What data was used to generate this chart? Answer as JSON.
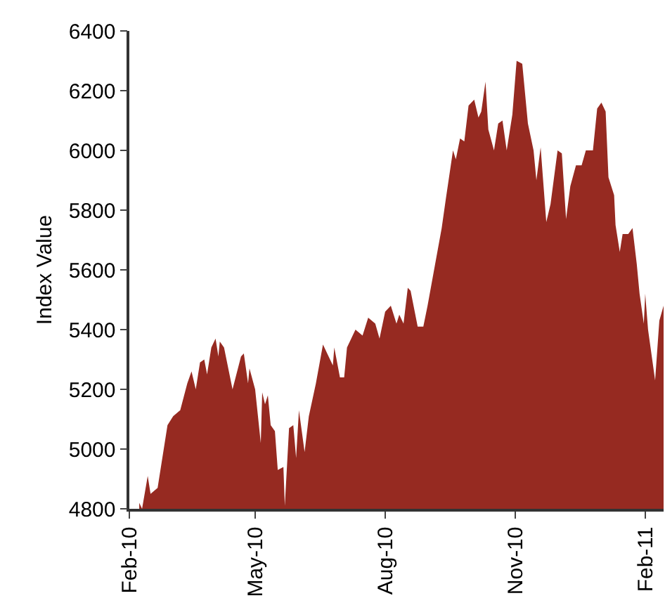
{
  "chart_data": {
    "type": "area",
    "ylabel": "Index Value",
    "color": "#962a21",
    "legend": false,
    "xlim": [
      "2010-02-01",
      "2011-02-14"
    ],
    "xticks": [
      {
        "value": "2010-02-01",
        "label": "Feb-10"
      },
      {
        "value": "2010-05-01",
        "label": "May-10"
      },
      {
        "value": "2010-08-01",
        "label": "Aug-10"
      },
      {
        "value": "2010-11-01",
        "label": "Nov-10"
      },
      {
        "value": "2011-02-01",
        "label": "Feb-11"
      }
    ],
    "ylim": [
      4800,
      6400
    ],
    "yticks": [
      4800,
      5000,
      5200,
      5400,
      5600,
      5800,
      6000,
      6200,
      6400
    ],
    "x": [
      "2010-02-08",
      "2010-02-10",
      "2010-02-14",
      "2010-02-16",
      "2010-02-21",
      "2010-02-28",
      "2010-03-04",
      "2010-03-09",
      "2010-03-14",
      "2010-03-17",
      "2010-03-20",
      "2010-03-23",
      "2010-03-26",
      "2010-03-28",
      "2010-03-31",
      "2010-04-03",
      "2010-04-05",
      "2010-04-06",
      "2010-04-09",
      "2010-04-15",
      "2010-04-21",
      "2010-04-23",
      "2010-04-26",
      "2010-04-27",
      "2010-05-01",
      "2010-05-05",
      "2010-05-06",
      "2010-05-08",
      "2010-05-10",
      "2010-05-12",
      "2010-05-15",
      "2010-05-17",
      "2010-05-21",
      "2010-05-22",
      "2010-05-25",
      "2010-05-28",
      "2010-05-30",
      "2010-06-01",
      "2010-06-05",
      "2010-06-08",
      "2010-06-13",
      "2010-06-18",
      "2010-06-21",
      "2010-06-25",
      "2010-06-26",
      "2010-06-30",
      "2010-07-03",
      "2010-07-05",
      "2010-07-08",
      "2010-07-11",
      "2010-07-16",
      "2010-07-20",
      "2010-07-25",
      "2010-07-28",
      "2010-08-01",
      "2010-08-05",
      "2010-08-09",
      "2010-08-11",
      "2010-08-14",
      "2010-08-17",
      "2010-08-19",
      "2010-08-24",
      "2010-08-28",
      "2010-08-31",
      "2010-09-05",
      "2010-09-10",
      "2010-09-13",
      "2010-09-18",
      "2010-09-20",
      "2010-09-23",
      "2010-09-26",
      "2010-09-29",
      "2010-10-03",
      "2010-10-06",
      "2010-10-08",
      "2010-10-11",
      "2010-10-13",
      "2010-10-17",
      "2010-10-20",
      "2010-10-23",
      "2010-10-26",
      "2010-10-30",
      "2010-11-02",
      "2010-11-06",
      "2010-11-10",
      "2010-11-14",
      "2010-11-16",
      "2010-11-19",
      "2010-11-23",
      "2010-11-26",
      "2010-12-01",
      "2010-12-04",
      "2010-12-07",
      "2010-12-10",
      "2010-12-14",
      "2010-12-18",
      "2010-12-21",
      "2010-12-26",
      "2010-12-29",
      "2011-01-01",
      "2011-01-04",
      "2011-01-06",
      "2011-01-10",
      "2011-01-11",
      "2011-01-14",
      "2011-01-16",
      "2011-01-20",
      "2011-01-23",
      "2011-01-26",
      "2011-01-28",
      "2011-01-31",
      "2011-02-01",
      "2011-02-03",
      "2011-02-08",
      "2011-02-11",
      "2011-02-14"
    ],
    "values": [
      4820,
      4800,
      4910,
      4850,
      4870,
      5080,
      5110,
      5130,
      5220,
      5260,
      5200,
      5290,
      5300,
      5250,
      5340,
      5370,
      5310,
      5360,
      5340,
      5200,
      5310,
      5320,
      5220,
      5270,
      5200,
      5020,
      5190,
      5150,
      5180,
      5080,
      5060,
      4930,
      4940,
      4810,
      5070,
      5080,
      4970,
      5130,
      4990,
      5110,
      5220,
      5350,
      5320,
      5280,
      5340,
      5240,
      5240,
      5340,
      5370,
      5400,
      5380,
      5440,
      5420,
      5370,
      5460,
      5480,
      5420,
      5450,
      5420,
      5540,
      5530,
      5410,
      5410,
      5480,
      5610,
      5740,
      5840,
      6000,
      5970,
      6040,
      6030,
      6150,
      6170,
      6110,
      6130,
      6230,
      6070,
      6000,
      6090,
      6100,
      6000,
      6120,
      6300,
      6290,
      6090,
      6000,
      5900,
      6010,
      5760,
      5820,
      6000,
      5990,
      5770,
      5880,
      5950,
      5950,
      6000,
      6000,
      6140,
      6160,
      6130,
      5910,
      5850,
      5750,
      5660,
      5720,
      5720,
      5740,
      5620,
      5520,
      5420,
      5520,
      5400,
      5230,
      5430,
      5480
    ]
  }
}
